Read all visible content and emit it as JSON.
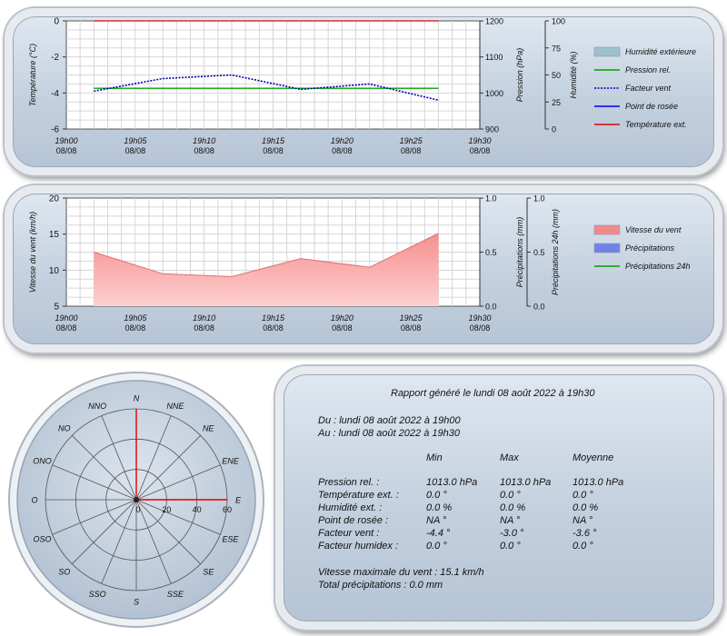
{
  "chart_data": [
    {
      "type": "line",
      "x_ticks": [
        "19h00",
        "19h05",
        "19h10",
        "19h15",
        "19h20",
        "19h25",
        "19h30"
      ],
      "date_label": "08/08",
      "ylabel_left": "Température (°C)",
      "ylabel_right1": "Pression (hPa)",
      "ylabel_right2": "Humidité (%)",
      "ylim_left": [
        -6,
        0
      ],
      "yticks_left": [
        0,
        -2,
        -4,
        -6
      ],
      "ylim_right1": [
        900,
        1200
      ],
      "yticks_right1": [
        1200,
        1100,
        1000,
        900
      ],
      "ylim_right2": [
        0,
        100
      ],
      "yticks_right2": [
        100,
        75,
        50,
        25,
        0
      ],
      "grid": true,
      "legend_position": "right",
      "series": [
        {
          "name": "Humidité extérieure",
          "style": "area",
          "color": "#9fc0cc",
          "values": []
        },
        {
          "name": "Pression rel.",
          "style": "solid",
          "color": "#00a000",
          "axis": "right1",
          "x_min": [
            2,
            27
          ],
          "values": [
            1013.0,
            1013.0
          ]
        },
        {
          "name": "Facteur vent",
          "style": "dotted",
          "color": "#0000b4",
          "axis": "left",
          "x_min": [
            2,
            7,
            12,
            17,
            22,
            27
          ],
          "values": [
            -3.9,
            -3.2,
            -3.0,
            -3.8,
            -3.5,
            -4.4
          ]
        },
        {
          "name": "Point de rosée",
          "style": "solid",
          "color": "#0000ff",
          "values": []
        },
        {
          "name": "Température ext.",
          "style": "solid",
          "color": "#e00000",
          "axis": "left",
          "x_min": [
            2,
            27
          ],
          "values": [
            0.0,
            0.0
          ]
        }
      ]
    },
    {
      "type": "area",
      "x_ticks": [
        "19h00",
        "19h05",
        "19h10",
        "19h15",
        "19h20",
        "19h25",
        "19h30"
      ],
      "date_label": "08/08",
      "ylabel_left": "Vitesse du vent (km/h)",
      "ylabel_right1": "Précipitations (mm)",
      "ylabel_right2": "Précipitations 24h (mm)",
      "ylim_left": [
        5,
        20
      ],
      "yticks_left": [
        20,
        15,
        10,
        5
      ],
      "ylim_right1": [
        0,
        1
      ],
      "yticks_right1": [
        "1.0",
        "0.5",
        "0.0"
      ],
      "ylim_right2": [
        0,
        1
      ],
      "yticks_right2": [
        "1.0",
        "0.5",
        "0.0"
      ],
      "grid": true,
      "legend_position": "right",
      "series": [
        {
          "name": "Vitesse du vent",
          "style": "area",
          "color": "#f08a8a",
          "axis": "left",
          "x_min": [
            2,
            7,
            12,
            17,
            22,
            27
          ],
          "values": [
            12.5,
            9.5,
            9.1,
            11.6,
            10.4,
            15.1
          ]
        },
        {
          "name": "Précipitations",
          "style": "area",
          "color": "#6f82e6",
          "values": []
        },
        {
          "name": "Précipitations 24h",
          "style": "solid",
          "color": "#00a000",
          "values": []
        }
      ]
    },
    {
      "type": "polar",
      "directions": [
        "N",
        "NNE",
        "NE",
        "ENE",
        "E",
        "ESE",
        "SE",
        "SSE",
        "S",
        "SSO",
        "SO",
        "OSO",
        "O",
        "ONO",
        "NO",
        "NNO"
      ],
      "radial_ticks": [
        "0",
        "20",
        "40",
        "60"
      ],
      "r_max": 60,
      "values": [
        {
          "direction": "N",
          "value": 60
        },
        {
          "direction": "E",
          "value": 60
        }
      ]
    }
  ],
  "report": {
    "title": "Rapport généré le lundi 08 août 2022 à 19h30",
    "from": "Du : lundi 08 août 2022 à 19h00",
    "to": "Au : lundi 08 août 2022 à 19h30",
    "headers": [
      "Min",
      "Max",
      "Moyenne"
    ],
    "rows": [
      {
        "label": "Pression rel. :",
        "min": "1013.0 hPa",
        "max": "1013.0 hPa",
        "avg": "1013.0 hPa"
      },
      {
        "label": "Température ext. :",
        "min": "0.0 °",
        "max": "0.0 °",
        "avg": "0.0 °"
      },
      {
        "label": "Humidité ext. :",
        "min": "0.0 %",
        "max": "0.0 %",
        "avg": "0.0 %"
      },
      {
        "label": "Point de rosée :",
        "min": "NA °",
        "max": "NA °",
        "avg": "NA °"
      },
      {
        "label": "Facteur vent :",
        "min": "-4.4 °",
        "max": "-3.0 °",
        "avg": "-3.6 °"
      },
      {
        "label": "Facteur humidex :",
        "min": "0.0 °",
        "max": "0.0 °",
        "avg": "0.0 °"
      }
    ],
    "max_wind": "Vitesse maximale du vent : 15.1 km/h",
    "total_rain": "Total précipitations : 0.0 mm"
  }
}
